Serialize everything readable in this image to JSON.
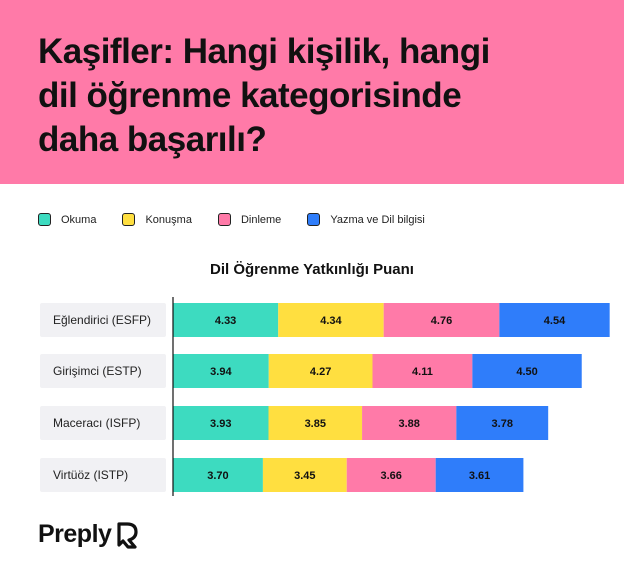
{
  "header": {
    "title_line1": "Kaşifler: Hangi kişilik, hangi",
    "title_line2": "dil öğrenme kategorisinde",
    "title_line3": "daha başarılı?",
    "background": "#ff7aa8"
  },
  "legend": [
    {
      "label": "Okuma",
      "color": "#3ddbc0"
    },
    {
      "label": "Konuşma",
      "color": "#ffdf40"
    },
    {
      "label": "Dinleme",
      "color": "#ff7aa8"
    },
    {
      "label": "Yazma ve Dil bilgisi",
      "color": "#2f7dfa"
    }
  ],
  "chart_data": {
    "type": "bar",
    "orientation": "horizontal",
    "stacked": true,
    "title": "Dil Öğrenme Yatkınlığı Puanı",
    "categories": [
      "Eğlendirici (ESFP)",
      "Girişimci (ESTP)",
      "Maceracı (ISFP)",
      "Virtüöz (ISTP)"
    ],
    "series": [
      {
        "name": "Okuma",
        "color": "#3ddbc0",
        "values": [
          4.33,
          3.94,
          3.93,
          3.7
        ]
      },
      {
        "name": "Konuşma",
        "color": "#ffdf40",
        "values": [
          4.34,
          4.27,
          3.85,
          3.45
        ]
      },
      {
        "name": "Dinleme",
        "color": "#ff7aa8",
        "values": [
          4.76,
          4.11,
          3.88,
          3.66
        ]
      },
      {
        "name": "Yazma ve Dil bilgisi",
        "color": "#2f7dfa",
        "values": [
          4.54,
          4.5,
          3.78,
          3.61
        ]
      }
    ],
    "value_labels": [
      [
        "4.33",
        "4.34",
        "4.76",
        "4.54"
      ],
      [
        "3.94",
        "4.27",
        "4.11",
        "4.50"
      ],
      [
        "3.93",
        "3.85",
        "3.88",
        "3.78"
      ],
      [
        "3.70",
        "3.45",
        "3.66",
        "3.61"
      ]
    ],
    "grid": false,
    "legend_position": "top-left"
  },
  "brand": {
    "name": "Preply"
  }
}
